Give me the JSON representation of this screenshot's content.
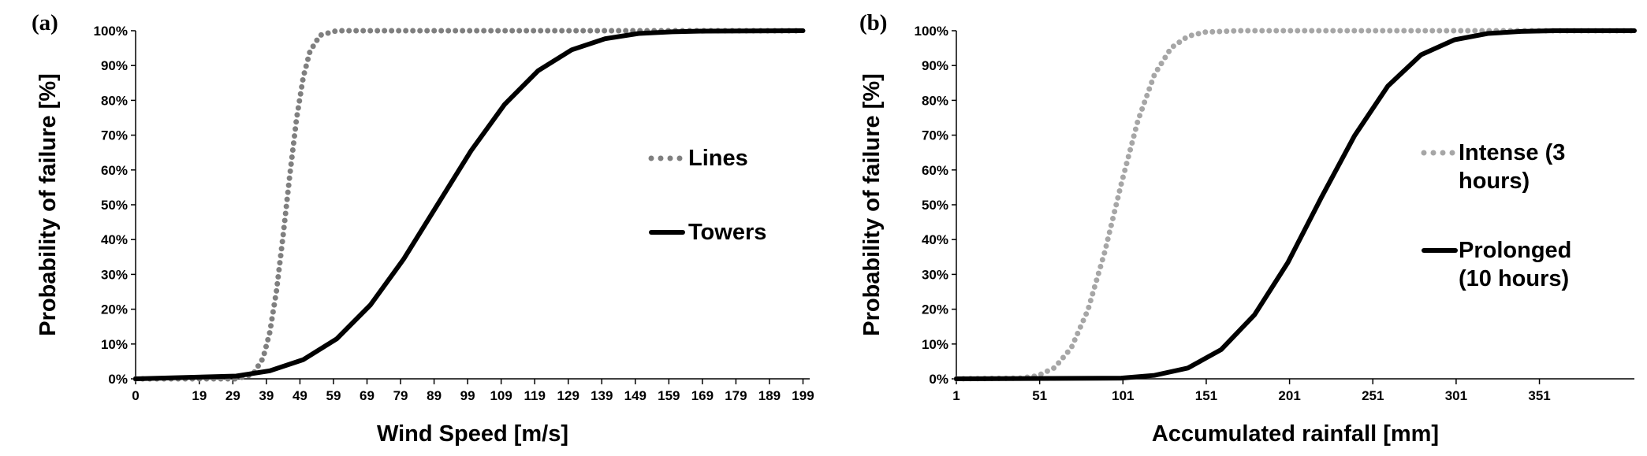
{
  "chart_data": [
    {
      "type": "line",
      "panel_label": "(a)",
      "x_label": "Wind Speed [m/s]",
      "y_label": "Probability of failure [%]",
      "xlim": [
        0,
        201
      ],
      "xticks": [
        0,
        19,
        29,
        39,
        49,
        59,
        69,
        79,
        89,
        99,
        109,
        119,
        129,
        139,
        149,
        159,
        169,
        179,
        189,
        199
      ],
      "ylim": [
        0,
        100
      ],
      "yticks": [
        {
          "value": 0,
          "label": "0%"
        },
        {
          "value": 10,
          "label": "10%"
        },
        {
          "value": 20,
          "label": "20%"
        },
        {
          "value": 30,
          "label": "30%"
        },
        {
          "value": 40,
          "label": "40%"
        },
        {
          "value": 50,
          "label": "50%"
        },
        {
          "value": 60,
          "label": "60%"
        },
        {
          "value": 70,
          "label": "70%"
        },
        {
          "value": 80,
          "label": "80%"
        },
        {
          "value": 90,
          "label": "90%"
        },
        {
          "value": 100,
          "label": "100%"
        }
      ],
      "legend": "right",
      "series": [
        {
          "name": "Lines",
          "color": "#7f7f7f",
          "style": "dotted",
          "x": [
            0,
            30,
            35,
            38,
            40,
            42,
            44,
            46,
            48,
            50,
            52,
            55,
            60,
            199
          ],
          "values": [
            0,
            0,
            1.3,
            5.9,
            13.3,
            25.2,
            41.3,
            58.7,
            74.8,
            86.7,
            94.1,
            98.7,
            100,
            100
          ]
        },
        {
          "name": "Towers",
          "color": "#000000",
          "style": "solid",
          "x": [
            0,
            30,
            40,
            50,
            60,
            70,
            80,
            90,
            100,
            110,
            120,
            130,
            140,
            150,
            160,
            170,
            199
          ],
          "values": [
            0,
            0.8,
            2.3,
            5.5,
            11.5,
            21.2,
            34.5,
            50,
            65.5,
            78.8,
            88.5,
            94.5,
            97.7,
            99.2,
            99.7,
            99.9,
            100
          ]
        }
      ]
    },
    {
      "type": "line",
      "panel_label": "(b)",
      "x_label": "Accumulated rainfall [mm]",
      "y_label": "Probability of failure [%]",
      "xlim": [
        1,
        408
      ],
      "xticks": [
        1,
        51,
        101,
        151,
        201,
        251,
        301,
        351
      ],
      "ylim": [
        0,
        100
      ],
      "yticks": [
        {
          "value": 0,
          "label": "0%"
        },
        {
          "value": 10,
          "label": "10%"
        },
        {
          "value": 20,
          "label": "20%"
        },
        {
          "value": 30,
          "label": "30%"
        },
        {
          "value": 40,
          "label": "40%"
        },
        {
          "value": 50,
          "label": "50%"
        },
        {
          "value": 60,
          "label": "60%"
        },
        {
          "value": 70,
          "label": "70%"
        },
        {
          "value": 80,
          "label": "80%"
        },
        {
          "value": 90,
          "label": "90%"
        },
        {
          "value": 100,
          "label": "100%"
        }
      ],
      "legend": "right",
      "series": [
        {
          "name": "Intense (3 hours)",
          "color": "#a6a6a6",
          "style": "dotted",
          "x": [
            1,
            40,
            50,
            60,
            70,
            80,
            90,
            100,
            110,
            120,
            130,
            140,
            150,
            170,
            408
          ],
          "values": [
            0,
            0.2,
            0.9,
            3.2,
            8.9,
            19.8,
            36.3,
            56.0,
            74.2,
            87.5,
            95.1,
            98.4,
            99.6,
            100,
            100
          ]
        },
        {
          "name": "Prolonged (10 hours)",
          "color": "#000000",
          "style": "solid",
          "x": [
            1,
            100,
            120,
            140,
            160,
            180,
            200,
            220,
            240,
            260,
            280,
            300,
            320,
            340,
            360,
            408
          ],
          "values": [
            0,
            0.2,
            1.0,
            3.1,
            8.4,
            18.4,
            33.4,
            52.0,
            69.8,
            84.1,
            93.1,
            97.4,
            99.2,
            99.8,
            100,
            100
          ]
        }
      ]
    }
  ]
}
